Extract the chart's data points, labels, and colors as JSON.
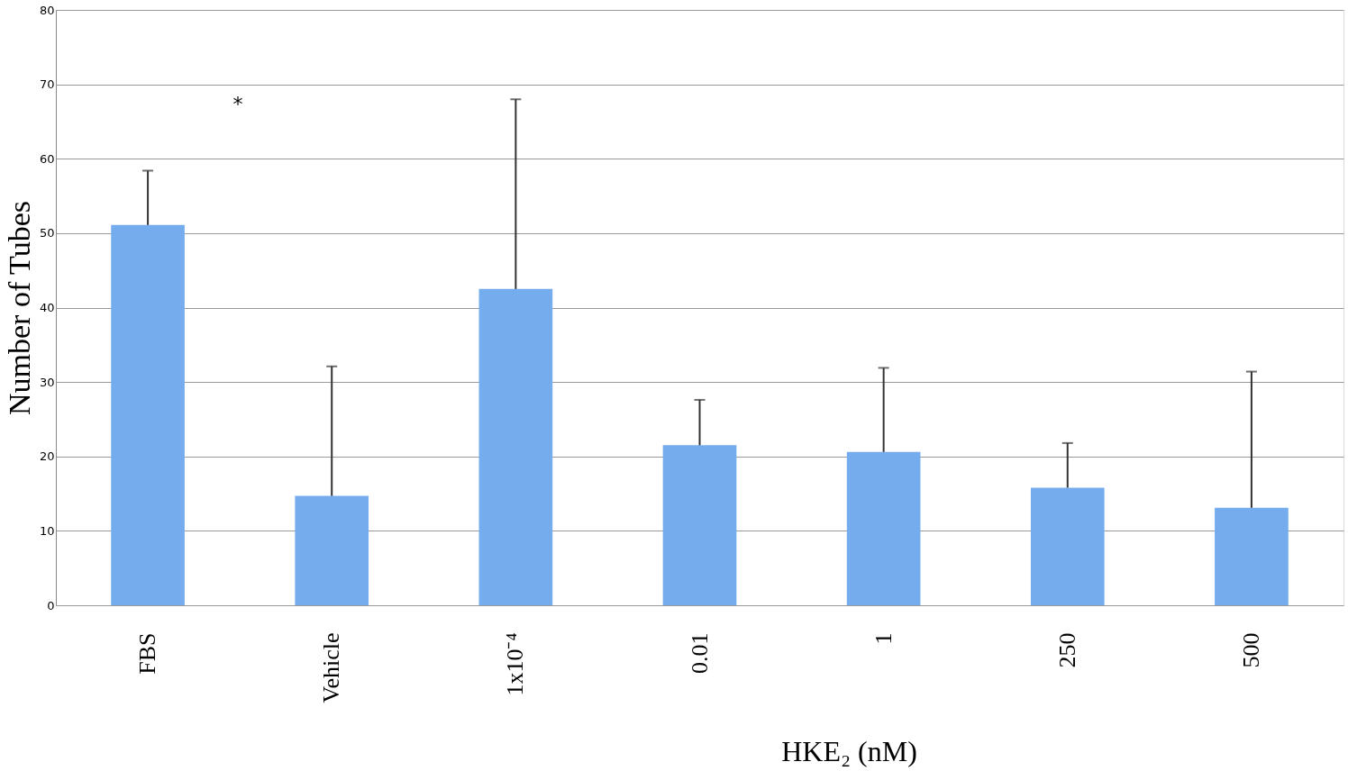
{
  "chart_data": {
    "type": "bar",
    "ylabel": "Number of Tubes",
    "xlabel": "HKE₂ (nM)",
    "categories": [
      "FBS",
      "Vehicle",
      "1x10⁻⁴",
      "0.01",
      "1",
      "250",
      "500"
    ],
    "values": [
      51.1,
      14.7,
      42.5,
      21.5,
      20.6,
      15.8,
      13.1
    ],
    "errors": [
      [
        51.1,
        58.4
      ],
      [
        14.7,
        32.1
      ],
      [
        42.5,
        68
      ],
      [
        21.5,
        27.6
      ],
      [
        20.6,
        31.9
      ],
      [
        15.8,
        21.8
      ],
      [
        13.1,
        31.4
      ]
    ],
    "color": "#74aced",
    "ylim": [
      0,
      80
    ],
    "yticks": [
      0,
      10,
      20,
      30,
      40,
      50,
      60,
      70,
      80
    ],
    "grid": "y",
    "annotations": [
      "*"
    ]
  }
}
